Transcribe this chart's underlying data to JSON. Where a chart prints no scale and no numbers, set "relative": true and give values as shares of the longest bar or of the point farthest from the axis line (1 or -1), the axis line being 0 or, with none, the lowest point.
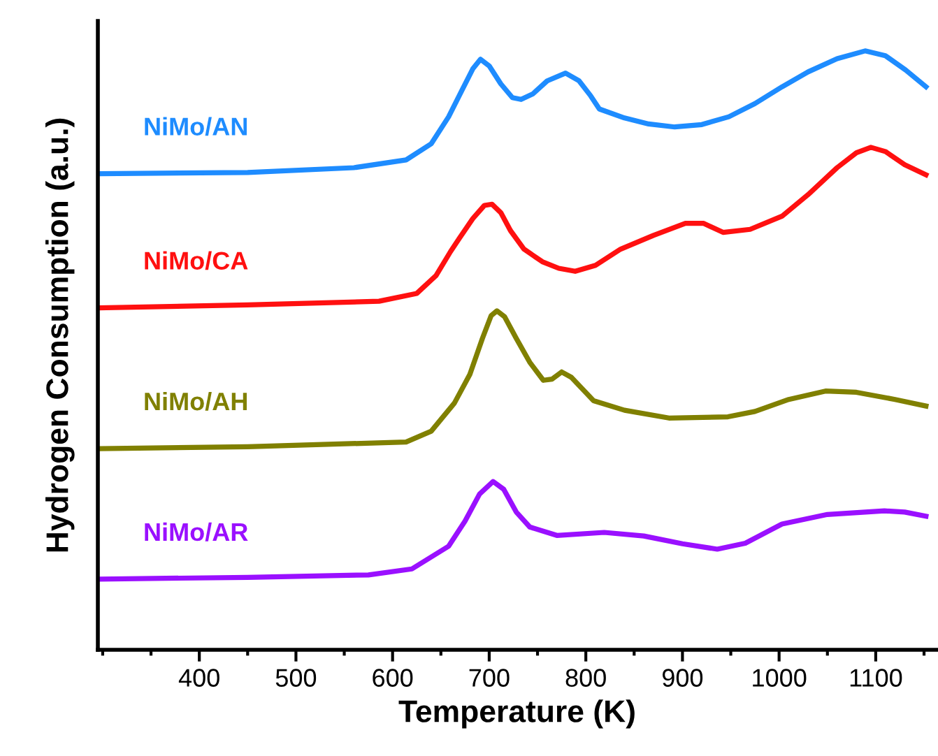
{
  "chart_data": {
    "type": "line",
    "xlabel": "Temperature (K)",
    "ylabel": "Hydrogen Consumption (a.u.)",
    "relative": true,
    "xlim": [
      295,
      1163
    ],
    "xticks": [
      400,
      500,
      600,
      700,
      800,
      900,
      1000,
      1100
    ],
    "grid": false,
    "legend": false,
    "marker": "none",
    "line_style": "solid",
    "series": [
      {
        "name": "NiMo/AN",
        "color": "#1e8cff",
        "x": [
          297,
          450,
          560,
          614,
          640,
          658,
          672,
          683,
          691,
          700,
          712,
          724,
          733,
          745,
          760,
          779,
          793,
          805,
          814,
          840,
          865,
          892,
          920,
          948,
          975,
          1003,
          1030,
          1060,
          1089,
          1110,
          1131,
          1152
        ],
        "values": [
          0.795,
          0.797,
          0.805,
          0.818,
          0.845,
          0.89,
          0.935,
          0.97,
          0.986,
          0.975,
          0.945,
          0.922,
          0.919,
          0.928,
          0.95,
          0.963,
          0.95,
          0.925,
          0.903,
          0.888,
          0.878,
          0.873,
          0.877,
          0.89,
          0.912,
          0.94,
          0.965,
          0.987,
          1,
          0.992,
          0.968,
          0.94
        ]
      },
      {
        "name": "NiMo/CA",
        "color": "#ff1010",
        "x": [
          297,
          450,
          586,
          625,
          645,
          660,
          669,
          683,
          695,
          703,
          712,
          722,
          736,
          755,
          772,
          789,
          810,
          836,
          870,
          903,
          922,
          942,
          970,
          1003,
          1030,
          1060,
          1080,
          1095,
          1110,
          1130,
          1152
        ],
        "values": [
          0.571,
          0.576,
          0.582,
          0.595,
          0.625,
          0.665,
          0.687,
          0.72,
          0.742,
          0.744,
          0.73,
          0.7,
          0.669,
          0.648,
          0.637,
          0.632,
          0.642,
          0.669,
          0.692,
          0.712,
          0.712,
          0.697,
          0.702,
          0.724,
          0.76,
          0.805,
          0.83,
          0.839,
          0.832,
          0.81,
          0.793
        ]
      },
      {
        "name": "NiMo/AH",
        "color": "#808000",
        "x": [
          297,
          450,
          614,
          640,
          664,
          680,
          693,
          702,
          708,
          716,
          728,
          742,
          756,
          765,
          775,
          785,
          808,
          840,
          886,
          947,
          975,
          1010,
          1048,
          1080,
          1120,
          1152
        ],
        "values": [
          0.336,
          0.339,
          0.347,
          0.365,
          0.412,
          0.46,
          0.52,
          0.558,
          0.566,
          0.556,
          0.52,
          0.48,
          0.45,
          0.452,
          0.464,
          0.455,
          0.416,
          0.4,
          0.387,
          0.389,
          0.398,
          0.418,
          0.432,
          0.43,
          0.418,
          0.407
        ]
      },
      {
        "name": "NiMo/AR",
        "color": "#9a10ff",
        "x": [
          297,
          450,
          575,
          620,
          658,
          675,
          690,
          704,
          715,
          728,
          742,
          770,
          819,
          860,
          900,
          936,
          965,
          1003,
          1050,
          1109,
          1130,
          1152
        ],
        "values": [
          0.118,
          0.121,
          0.125,
          0.135,
          0.173,
          0.215,
          0.26,
          0.281,
          0.268,
          0.23,
          0.205,
          0.191,
          0.196,
          0.19,
          0.177,
          0.168,
          0.178,
          0.21,
          0.226,
          0.232,
          0.23,
          0.223
        ]
      }
    ]
  }
}
